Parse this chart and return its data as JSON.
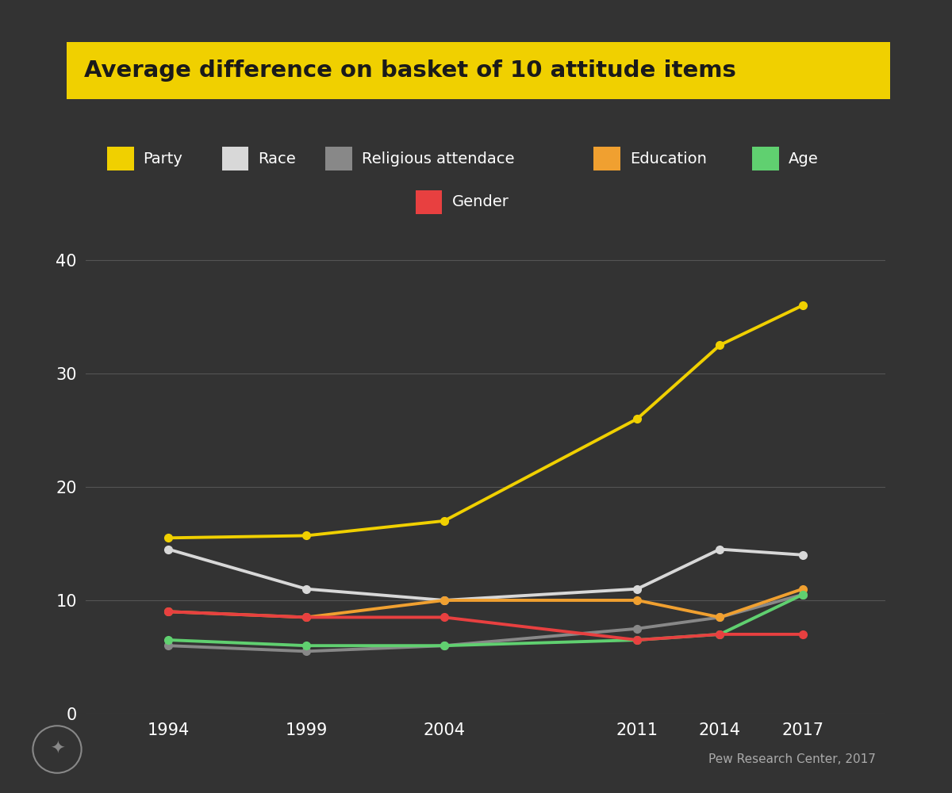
{
  "title": "Average difference on basket of 10 attitude items",
  "title_bg": "#f0d000",
  "title_color": "#1a1a1a",
  "background_color": "#333333",
  "plot_bg": "#333333",
  "text_color": "#ffffff",
  "grid_color": "#555555",
  "years": [
    1994,
    1999,
    2004,
    2011,
    2014,
    2017
  ],
  "series": [
    {
      "name": "Party",
      "color": "#f0d000",
      "values": [
        15.5,
        15.7,
        17.0,
        26.0,
        32.5,
        36.0
      ],
      "marker": "o"
    },
    {
      "name": "Race",
      "color": "#d8d8d8",
      "values": [
        14.5,
        11.0,
        10.0,
        11.0,
        14.5,
        14.0
      ],
      "marker": "o"
    },
    {
      "name": "Religious attendace",
      "color": "#888888",
      "values": [
        6.0,
        5.5,
        6.0,
        7.5,
        8.5,
        10.5
      ],
      "marker": "o"
    },
    {
      "name": "Education",
      "color": "#f0a030",
      "values": [
        9.0,
        8.5,
        10.0,
        10.0,
        8.5,
        11.0
      ],
      "marker": "o"
    },
    {
      "name": "Age",
      "color": "#60d070",
      "values": [
        6.5,
        6.0,
        6.0,
        6.5,
        7.0,
        10.5
      ],
      "marker": "o"
    },
    {
      "name": "Gender",
      "color": "#e84040",
      "values": [
        9.0,
        8.5,
        8.5,
        6.5,
        7.0,
        7.0
      ],
      "marker": "o"
    }
  ],
  "ylim": [
    0,
    43
  ],
  "yticks": [
    0,
    10,
    20,
    30,
    40
  ],
  "footer_text": "Pew Research Center, 2017",
  "legend_row1": [
    "Party",
    "Race",
    "Religious attendace",
    "Education",
    "Age"
  ],
  "legend_row2": [
    "Gender"
  ]
}
